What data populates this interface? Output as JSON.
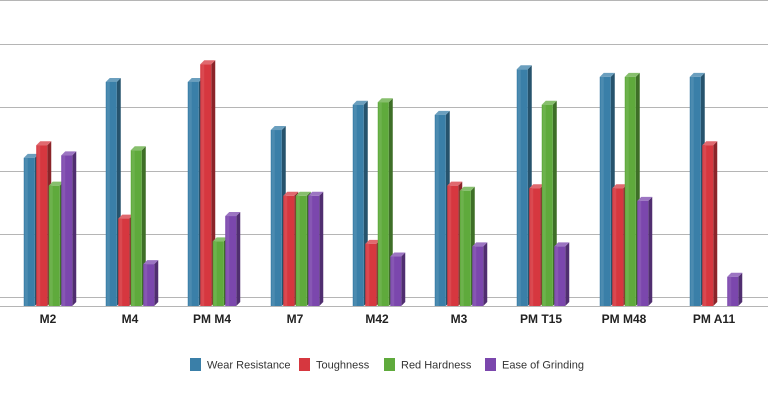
{
  "chart_data": {
    "type": "bar",
    "title": "",
    "xlabel": "",
    "ylabel": "",
    "ylim": [
      0,
      10
    ],
    "grid": true,
    "legend_position": "bottom",
    "categories": [
      "M2",
      "M4",
      "PM M4",
      "M7",
      "M42",
      "M3",
      "PM T15",
      "PM M48",
      "PM A11"
    ],
    "series": [
      {
        "name": "Wear Resistance",
        "color": "#3a7fa8",
        "values": [
          5.5,
          8.5,
          8.5,
          6.6,
          7.6,
          7.2,
          9.0,
          8.7,
          8.7
        ]
      },
      {
        "name": "Toughness",
        "color": "#d6373f",
        "values": [
          6.0,
          3.1,
          9.2,
          4.0,
          2.1,
          4.4,
          4.3,
          4.3,
          6.0
        ]
      },
      {
        "name": "Red Hardness",
        "color": "#5faa3c",
        "values": [
          4.4,
          5.8,
          2.2,
          4.0,
          7.7,
          4.2,
          7.6,
          8.7,
          0
        ]
      },
      {
        "name": "Ease of Grinding",
        "color": "#7b47ad",
        "values": [
          5.6,
          1.3,
          3.2,
          4.0,
          1.6,
          2.0,
          2.0,
          3.8,
          0.8
        ]
      }
    ]
  }
}
